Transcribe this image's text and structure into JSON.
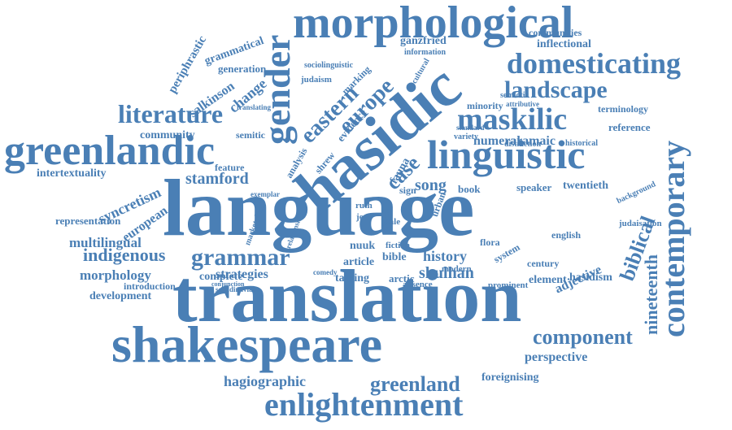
{
  "word_cloud": {
    "color": "#4a7fb5",
    "words": [
      "language",
      "translation",
      "shakespeare",
      "hasidic",
      "morphological",
      "greenlandic",
      "linguistic",
      "gender",
      "enlightenment",
      "contemporary",
      "domesticating",
      "maskilic",
      "literature",
      "grammar",
      "landscape",
      "eastern",
      "europe",
      "component",
      "greenland",
      "biblical",
      "nineteenth",
      "indigenous",
      "stamford",
      "syncretism",
      "multilingual",
      "song",
      "history",
      "shulhan",
      "hagiographic",
      "perspective",
      "foreignising",
      "morphology",
      "strategies",
      "european",
      "adjective",
      "periphrastic",
      "grammatical",
      "salkinson",
      "change",
      "generation",
      "case",
      "numeral",
      "aramaic",
      "inflectional",
      "communities",
      "ganzfried",
      "twentieth",
      "speaker",
      "book",
      "article",
      "bible",
      "taming",
      "arctic",
      "hasidism",
      "reference",
      "terminology",
      "minority",
      "representation",
      "intertextuality",
      "community",
      "development",
      "introduction",
      "complete",
      "element",
      "century",
      "english",
      "feature",
      "semitic",
      "analysis",
      "shrew",
      "evidence",
      "marking",
      "judaism",
      "sociolinguistic",
      "information",
      "cultural",
      "fauna",
      "flora",
      "nuuk",
      "sign",
      "system",
      "prominent",
      "modern",
      "absence",
      "fiction",
      "judaisation",
      "background",
      "historical",
      "distinction",
      "semiotic",
      "attributive",
      "standard",
      "variety",
      "translating",
      "marketplace",
      "relationship",
      "scandinavian",
      "exemplar",
      "tale",
      "loshn",
      "urban",
      "jew",
      "ruth",
      "comedy",
      "conjunction"
    ]
  }
}
